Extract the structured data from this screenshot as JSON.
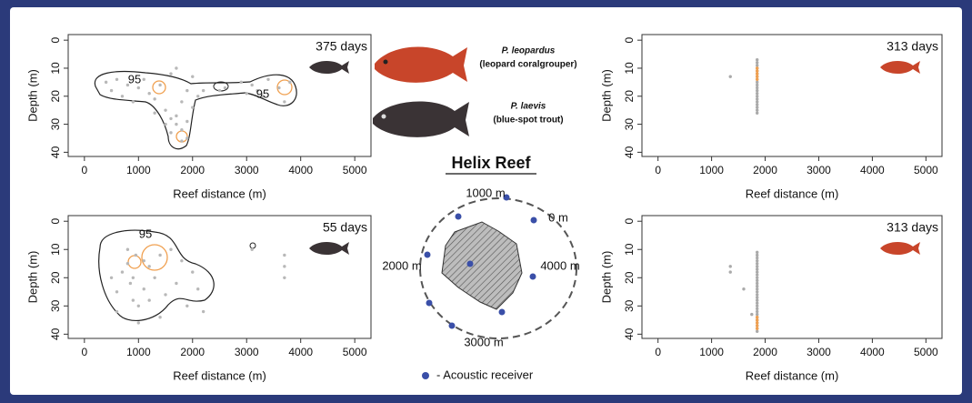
{
  "chart_data": [
    {
      "type": "scatter",
      "label": "375 days",
      "xlabel": "Reef distance (m)",
      "ylabel": "Depth (m)",
      "xlim": [
        -300,
        5300
      ],
      "ylim": [
        -2,
        41.5
      ],
      "y_inverted": true,
      "xticks": [
        0,
        1000,
        2000,
        3000,
        4000,
        5000
      ],
      "yticks": [
        0,
        10,
        20,
        30,
        40
      ],
      "annotations": [
        "95",
        "95"
      ],
      "series": [
        {
          "color": "#b8b8b8",
          "x": [
            400,
            500,
            600,
            700,
            800,
            900,
            1000,
            1100,
            1200,
            1300,
            1400,
            1500,
            1600,
            1700,
            1800,
            1900,
            2000,
            2100,
            2200,
            2600,
            2900,
            3000,
            3100,
            3200,
            3300,
            3400,
            3600,
            3700,
            3800,
            1500,
            1600,
            1700,
            1800,
            1900,
            1600,
            1700,
            1800,
            1300,
            1900,
            2000,
            2500
          ],
          "values": [
            15,
            18,
            14,
            20,
            16,
            22,
            17,
            14,
            19,
            21,
            16,
            25,
            28,
            30,
            32,
            35,
            24,
            20,
            18,
            17,
            15,
            19,
            16,
            18,
            20,
            14,
            17,
            22,
            15,
            30,
            33,
            27,
            36,
            29,
            12,
            10,
            22,
            26,
            18,
            13,
            18
          ]
        }
      ]
    },
    {
      "type": "scatter",
      "label": "55 days",
      "xlabel": "Reef distance (m)",
      "ylabel": "Depth (m)",
      "xlim": [
        -300,
        5300
      ],
      "ylim": [
        -2,
        41.5
      ],
      "y_inverted": true,
      "xticks": [
        0,
        1000,
        2000,
        3000,
        4000,
        5000
      ],
      "yticks": [
        0,
        10,
        20,
        30,
        40
      ],
      "annotations": [
        "95"
      ],
      "series": [
        {
          "color": "#b8b8b8",
          "x": [
            500,
            600,
            700,
            800,
            850,
            900,
            950,
            1000,
            1100,
            1200,
            1300,
            1400,
            1500,
            1600,
            1700,
            1800,
            1900,
            2000,
            2100,
            2200,
            600,
            800,
            1000,
            1200,
            1400,
            3100,
            3700,
            3700,
            3700,
            900,
            1100
          ],
          "values": [
            20,
            25,
            18,
            15,
            22,
            28,
            12,
            30,
            24,
            16,
            20,
            34,
            26,
            10,
            22,
            14,
            30,
            18,
            24,
            32,
            32,
            10,
            36,
            28,
            12,
            10,
            12,
            16,
            20,
            20,
            14
          ]
        }
      ]
    },
    {
      "type": "scatter",
      "label": "313 days",
      "xlabel": "Reef distance (m)",
      "ylabel": "Depth (m)",
      "xlim": [
        -300,
        5300
      ],
      "ylim": [
        -2,
        41.5
      ],
      "y_inverted": true,
      "xticks": [
        0,
        1000,
        2000,
        3000,
        4000,
        5000
      ],
      "yticks": [
        0,
        10,
        20,
        30,
        40
      ],
      "annotations": [],
      "series": [
        {
          "color": "#aaaaaa",
          "x": [
            1350,
            1850,
            1850,
            1850,
            1850,
            1850,
            1850,
            1850,
            1850,
            1850,
            1850,
            1850,
            1850,
            1850,
            1850,
            1850,
            1850,
            1850,
            1850,
            1850,
            1850
          ],
          "values": [
            13,
            7,
            8,
            9,
            10,
            11,
            12,
            13,
            14,
            15,
            16,
            17,
            18,
            19,
            20,
            21,
            22,
            23,
            24,
            25,
            26
          ]
        },
        {
          "color": "#f0a050",
          "x": [
            1850,
            1850,
            1850,
            1850,
            1850
          ],
          "values": [
            10,
            11,
            12,
            13,
            14
          ]
        }
      ]
    },
    {
      "type": "scatter",
      "label": "313 days",
      "xlabel": "Reef distance (m)",
      "ylabel": "Depth (m)",
      "xlim": [
        -300,
        5300
      ],
      "ylim": [
        -2,
        41.5
      ],
      "y_inverted": true,
      "xticks": [
        0,
        1000,
        2000,
        3000,
        4000,
        5000
      ],
      "yticks": [
        0,
        10,
        20,
        30,
        40
      ],
      "annotations": [],
      "series": [
        {
          "color": "#aaaaaa",
          "x": [
            1350,
            1350,
            1600,
            1750,
            1850,
            1850,
            1850,
            1850,
            1850,
            1850,
            1850,
            1850,
            1850,
            1850,
            1850,
            1850,
            1850,
            1850,
            1850,
            1850,
            1850,
            1850,
            1850,
            1850,
            1850,
            1850,
            1850,
            1850,
            1850,
            1850,
            1850,
            1850,
            1850
          ],
          "values": [
            16,
            18,
            24,
            33,
            11,
            12,
            13,
            14,
            15,
            16,
            17,
            18,
            19,
            20,
            21,
            22,
            23,
            24,
            25,
            26,
            27,
            28,
            29,
            30,
            31,
            32,
            33,
            34,
            35,
            36,
            37,
            38,
            39
          ]
        },
        {
          "color": "#f0a050",
          "x": [
            1850,
            1850,
            1850,
            1850,
            1850
          ],
          "values": [
            34,
            35,
            36,
            37,
            38
          ]
        }
      ]
    }
  ],
  "species": [
    {
      "name": "P. leopardus",
      "common": "(leopard coralgrouper)"
    },
    {
      "name": "P. laevis",
      "common": "(blue-spot trout)"
    }
  ],
  "diagram": {
    "title": "Helix Reef",
    "labels": [
      "1000 m",
      "0 m",
      "2000 m",
      "4000 m",
      "3000 m"
    ],
    "legend": "- Acoustic receiver"
  }
}
